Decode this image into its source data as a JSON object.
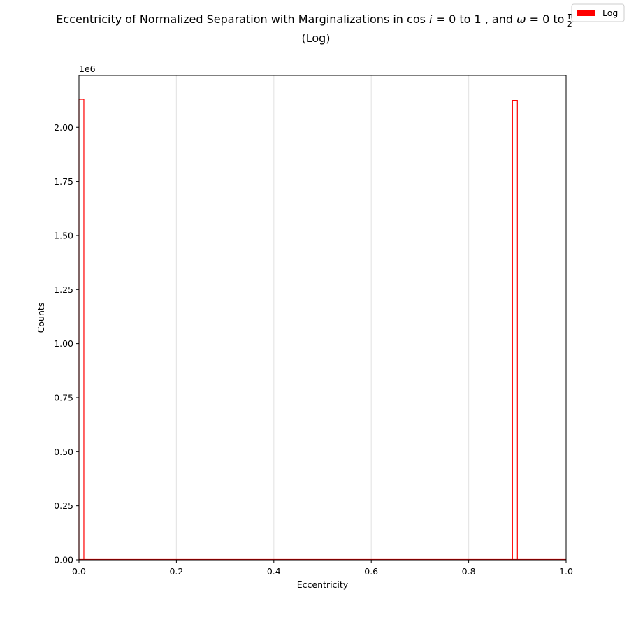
{
  "chart_data": {
    "type": "bar",
    "title_line1": "Eccentricity of Normalized Separation with Marginalizations in cos i = 0 to 1 , and ω = 0 to π/2",
    "title_line2": "(Log)",
    "xlabel": "Eccentricity",
    "ylabel": "Counts",
    "y_offset_label": "1e6",
    "xlim": [
      0,
      1
    ],
    "ylim": [
      0,
      2.24
    ],
    "x_ticks": [
      "0.0",
      "0.2",
      "0.4",
      "0.6",
      "0.8",
      "1.0"
    ],
    "x_tick_values": [
      0,
      0.2,
      0.4,
      0.6,
      0.8,
      1.0
    ],
    "y_ticks": [
      "0.00",
      "0.25",
      "0.50",
      "0.75",
      "1.00",
      "1.25",
      "1.50",
      "1.75",
      "2.00"
    ],
    "y_tick_values": [
      0,
      0.25,
      0.5,
      0.75,
      1.0,
      1.25,
      1.5,
      1.75,
      2.0
    ],
    "bin_width": 0.01,
    "series": [
      {
        "name": "Log",
        "color": "#ff0000",
        "histtype": "step",
        "bins": [
          {
            "x0": 0.0,
            "x1": 0.01,
            "value": 2.13
          },
          {
            "x0": 0.89,
            "x1": 0.9,
            "value": 2.125
          }
        ]
      }
    ],
    "grid": "vertical only",
    "legend_position": "top-right"
  }
}
